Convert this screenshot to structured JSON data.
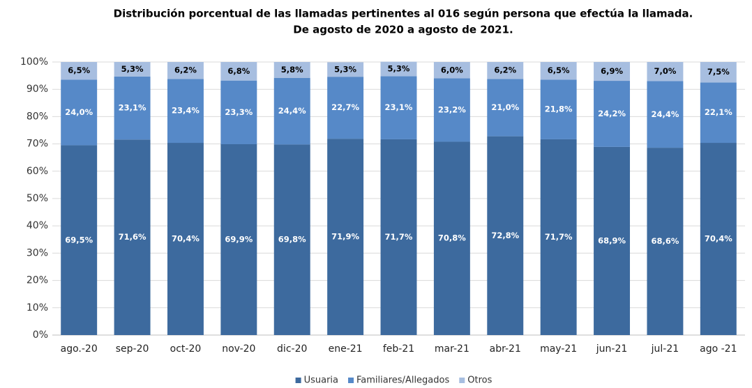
{
  "chart_data": {
    "type": "stacked_bar",
    "title": "Distribución porcentual de las llamadas pertinentes al 016 según persona que efectúa la llamada.",
    "subtitle": "De agosto de 2020 a agosto de 2021.",
    "categories": [
      "ago.-20",
      "sep-20",
      "oct-20",
      "nov-20",
      "dic-20",
      "ene-21",
      "feb-21",
      "mar-21",
      "abr-21",
      "may-21",
      "jun-21",
      "jul-21",
      "ago -21"
    ],
    "series": [
      {
        "name": "Usuaria",
        "color": "#3d6a9e",
        "values": [
          69.5,
          71.6,
          70.4,
          69.9,
          69.8,
          71.9,
          71.7,
          70.8,
          72.8,
          71.7,
          68.9,
          68.6,
          70.4
        ],
        "value_labels": [
          "69,5%",
          "71,6%",
          "70,4%",
          "69,9%",
          "69,8%",
          "71,9%",
          "71,7%",
          "70,8%",
          "72,8%",
          "71,7%",
          "68,9%",
          "68,6%",
          "70,4%"
        ]
      },
      {
        "name": "Familiares/Allegados",
        "color": "#5689c8",
        "values": [
          24.0,
          23.1,
          23.4,
          23.3,
          24.4,
          22.7,
          23.1,
          23.2,
          21.0,
          21.8,
          24.2,
          24.4,
          22.1
        ],
        "value_labels": [
          "24,0%",
          "23,1%",
          "23,4%",
          "23,3%",
          "24,4%",
          "22,7%",
          "23,1%",
          "23,2%",
          "21,0%",
          "21,8%",
          "24,2%",
          "24,4%",
          "22,1%"
        ]
      },
      {
        "name": "Otros",
        "color": "#a7bee0",
        "values": [
          6.5,
          5.3,
          6.2,
          6.8,
          5.8,
          5.3,
          5.3,
          6.0,
          6.2,
          6.5,
          6.9,
          7.0,
          7.5
        ],
        "value_labels": [
          "6,5%",
          "5,3%",
          "6,2%",
          "6,8%",
          "5,8%",
          "5,3%",
          "5,3%",
          "6,0%",
          "6,2%",
          "6,5%",
          "6,9%",
          "7,0%",
          "7,5%"
        ]
      }
    ],
    "ylim": [
      0,
      100
    ],
    "yticks": [
      {
        "value": 0,
        "label": "0%"
      },
      {
        "value": 10,
        "label": "10%"
      },
      {
        "value": 20,
        "label": "20%"
      },
      {
        "value": 30,
        "label": "30%"
      },
      {
        "value": 40,
        "label": "40%"
      },
      {
        "value": 50,
        "label": "50%"
      },
      {
        "value": 60,
        "label": "60%"
      },
      {
        "value": 70,
        "label": "70%"
      },
      {
        "value": 80,
        "label": "80%"
      },
      {
        "value": 90,
        "label": "90%"
      },
      {
        "value": 100,
        "label": "100%"
      }
    ],
    "grid": true,
    "legend": "bottom"
  }
}
